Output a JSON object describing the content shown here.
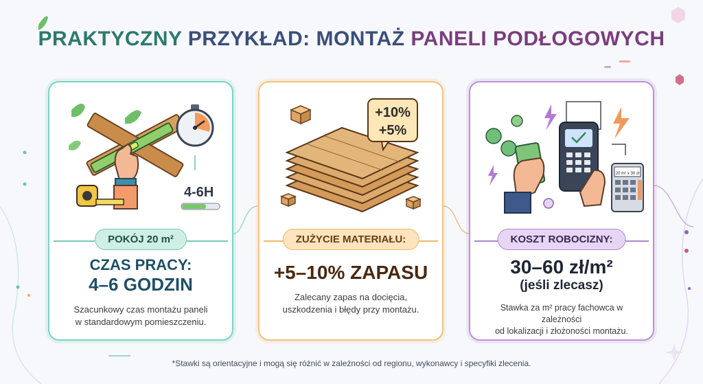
{
  "title": {
    "part1": "PRAKTYCZNY",
    "part2": "PRZYKŁAD: MONTAŻ",
    "part3": "PANELI PODŁOGOWYCH"
  },
  "cards": [
    {
      "tag": "POKÓJ 20 m²",
      "heading": "CZAS PRACY:",
      "value": "4–6 GODZIN",
      "description_line1": "Szacunkowy czas montażu paneli",
      "description_line2": "w standardowym pomieszczeniu.",
      "illustration_text": "4-6H",
      "progress_fraction": 0.65
    },
    {
      "tag": "ZUŻYCIE MATERIAŁU:",
      "value": "+5–10% ZAPASU",
      "description_line1": "Zalecany zapas na docięcia,",
      "description_line2": "uszkodzenia i błędy przy montażu.",
      "bubble_line1": "+10%",
      "bubble_line2": "+5%"
    },
    {
      "tag": "KOSZT ROBOCIZNY:",
      "value": "30–60 zł/m²",
      "subvalue": "(jeśli zlecasz)",
      "description_line1": "Stawka za m² pracy fachowca w zależności",
      "description_line2": "od lokalizacji i złożoności montażu.",
      "calculator_text": "20 m² x 30 zł"
    }
  ],
  "footnote": "*Stawki są orientacyjne i mogą się różnić w zależności od regionu, wykonawcy i specyfiki zlecenia.",
  "colors": {
    "teal": "#2b7a6e",
    "navy": "#3a4f7a",
    "purple": "#7a3e7e",
    "brown": "#5a2e0e"
  }
}
